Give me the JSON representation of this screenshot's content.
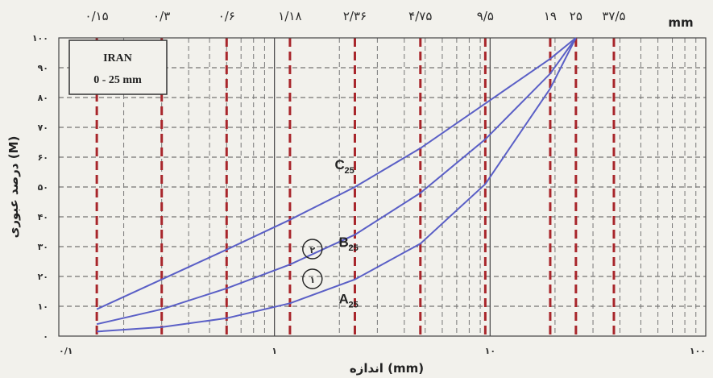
{
  "chart_data": {
    "type": "line",
    "x_scale": "log",
    "x_range": [
      0.1,
      100
    ],
    "y_range": [
      0,
      100
    ],
    "xlabel": "اندازه (mm)",
    "ylabel": "درصد عبوری (M)",
    "x_tick_labels": [
      "۰/۱",
      "۱",
      "۱۰",
      "۱۰۰"
    ],
    "y_tick_labels": [
      "۰",
      "۱۰",
      "۲۰",
      "۳۰",
      "۴۰",
      "۵۰",
      "۶۰",
      "۷۰",
      "۸۰",
      "۹۰",
      "۱۰۰"
    ],
    "top_unit": "mm",
    "sieves": [
      {
        "value": 0.15,
        "label": "۰/۱۵"
      },
      {
        "value": 0.3,
        "label": "۰/۳"
      },
      {
        "value": 0.6,
        "label": "۰/۶"
      },
      {
        "value": 1.18,
        "label": "۱/۱۸"
      },
      {
        "value": 2.36,
        "label": "۲/۳۶"
      },
      {
        "value": 4.75,
        "label": "۴/۷۵"
      },
      {
        "value": 9.5,
        "label": "۹/۵"
      },
      {
        "value": 19,
        "label": "۱۹"
      },
      {
        "value": 25,
        "label": "۲۵"
      },
      {
        "value": 37.5,
        "label": "۳۷/۵"
      }
    ],
    "legend_box": {
      "line1": "IRAN",
      "line2": "0 - 25 mm"
    },
    "series": [
      {
        "name": "C",
        "sub": "25",
        "x": [
          0.15,
          0.3,
          0.6,
          1.18,
          2.36,
          4.75,
          9.5,
          19,
          25
        ],
        "y": [
          9,
          19,
          29,
          39,
          50,
          63,
          78,
          93,
          100
        ]
      },
      {
        "name": "B",
        "sub": "25",
        "x": [
          0.15,
          0.3,
          0.6,
          1.18,
          2.36,
          4.75,
          9.5,
          19,
          25
        ],
        "y": [
          4,
          9,
          16,
          24,
          34,
          48,
          66,
          88,
          100
        ]
      },
      {
        "name": "A",
        "sub": "25",
        "x": [
          0.15,
          0.3,
          0.6,
          1.18,
          2.36,
          4.75,
          9.5,
          19,
          25
        ],
        "y": [
          1.5,
          3,
          6,
          11,
          19,
          31,
          51,
          83,
          100
        ]
      }
    ],
    "markers": [
      {
        "label": "۲",
        "x": 1.5,
        "y": 30
      },
      {
        "label": "۱",
        "x": 1.5,
        "y": 20
      }
    ],
    "line_color": "#5a5fc6",
    "sieve_line_color": "#a8262b",
    "grid": true
  }
}
